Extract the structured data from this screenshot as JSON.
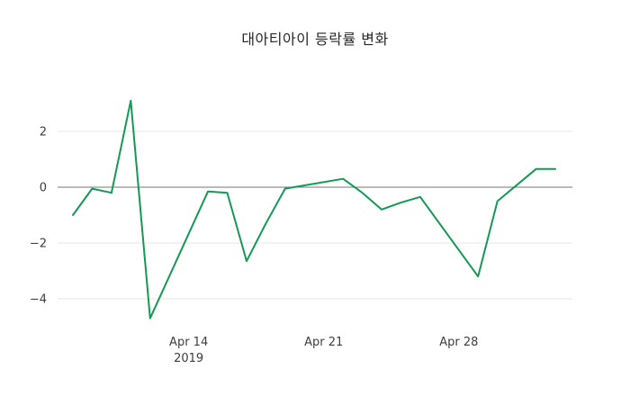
{
  "title": "대아티아이 등락률 변화",
  "colors": {
    "line": "#149954",
    "grid": "#e6e6e6",
    "zero_line": "#757575",
    "tick_text": "#3d3d3d",
    "background": "#ffffff"
  },
  "chart_data": {
    "type": "line",
    "title": "대아티아이 등락률 변화",
    "series_name": "등락률",
    "x": [
      "2019-04-08",
      "2019-04-09",
      "2019-04-10",
      "2019-04-11",
      "2019-04-12",
      "2019-04-15",
      "2019-04-16",
      "2019-04-17",
      "2019-04-18",
      "2019-04-19",
      "2019-04-22",
      "2019-04-23",
      "2019-04-24",
      "2019-04-25",
      "2019-04-26",
      "2019-04-29",
      "2019-04-30",
      "2019-05-02",
      "2019-05-03"
    ],
    "values": [
      -1.0,
      -0.05,
      -0.2,
      3.1,
      -4.7,
      -0.15,
      -0.2,
      -2.65,
      -1.3,
      -0.05,
      0.3,
      -0.2,
      -0.8,
      -0.55,
      -0.35,
      -3.2,
      -0.5,
      0.65,
      0.65
    ],
    "ylim": [
      -5,
      3.5
    ],
    "yticks": [
      {
        "value": 2,
        "label": "2"
      },
      {
        "value": 0,
        "label": "0"
      },
      {
        "value": -2,
        "label": "−2"
      },
      {
        "value": -4,
        "label": "−4"
      }
    ],
    "xticks": [
      {
        "date": "2019-04-14",
        "label": "Apr 14",
        "sublabel": "2019"
      },
      {
        "date": "2019-04-21",
        "label": "Apr 21",
        "sublabel": ""
      },
      {
        "date": "2019-04-28",
        "label": "Apr 28",
        "sublabel": ""
      }
    ],
    "grid": "horizontal",
    "legend": "none",
    "xlabel": "",
    "ylabel": ""
  }
}
